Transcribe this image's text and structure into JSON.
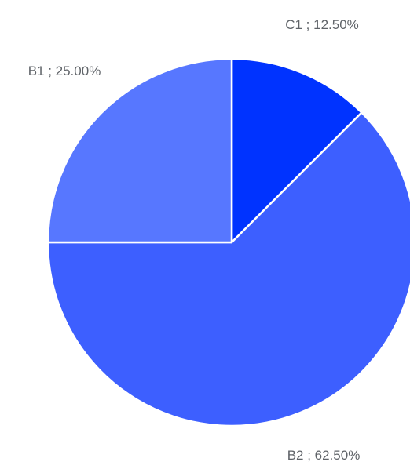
{
  "chart_data": {
    "type": "pie",
    "start_angle_deg": 0,
    "direction": "clockwise",
    "legend": "none",
    "slices": [
      {
        "name": "C1",
        "value": 12.5,
        "label": "C1 ; 12.50%",
        "color": "#0033ff"
      },
      {
        "name": "B2",
        "value": 62.5,
        "label": "B2 ; 62.50%",
        "color": "#3d5fff"
      },
      {
        "name": "B1",
        "value": 25.0,
        "label": "B1 ; 25.00%",
        "color": "#5777ff"
      }
    ]
  }
}
